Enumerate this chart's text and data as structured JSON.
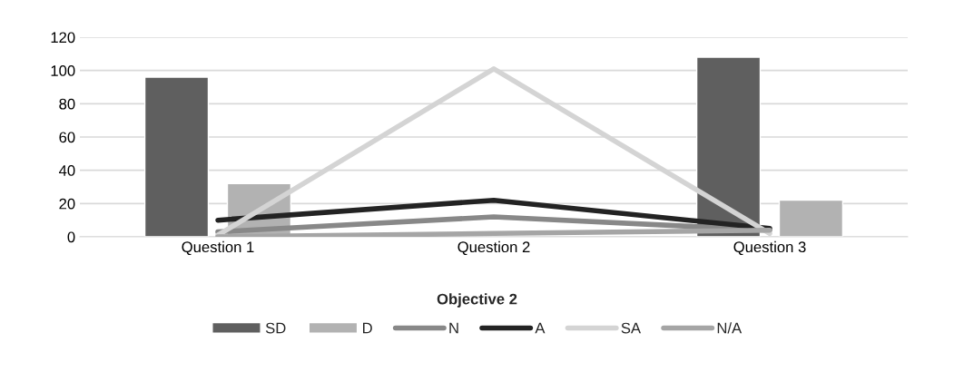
{
  "chart_data": {
    "type": "bar",
    "title": "Objective 2",
    "categories": [
      "Question 1",
      "Question 2",
      "Question 3"
    ],
    "series": [
      {
        "name": "SD",
        "color": "#5f5f5f",
        "values": [
          96,
          null,
          108
        ]
      },
      {
        "name": "D",
        "color": "#b2b2b2",
        "values": [
          32,
          null,
          22
        ]
      },
      {
        "name": "N",
        "type": "line",
        "color": "#888888",
        "values": [
          3,
          12,
          4
        ]
      },
      {
        "name": "A",
        "type": "line",
        "color": "#232323",
        "values": [
          10,
          22,
          5
        ]
      },
      {
        "name": "SA",
        "type": "line",
        "color": "#d4d4d4",
        "values": [
          1,
          101,
          2
        ]
      },
      {
        "name": "N/A",
        "type": "line",
        "color": "#a5a5a5",
        "values": [
          0,
          2,
          4
        ]
      }
    ],
    "ylim": [
      0,
      120
    ],
    "yticks": [
      0,
      20,
      40,
      60,
      80,
      100,
      120
    ],
    "grid": "y",
    "legend": "bottom"
  }
}
